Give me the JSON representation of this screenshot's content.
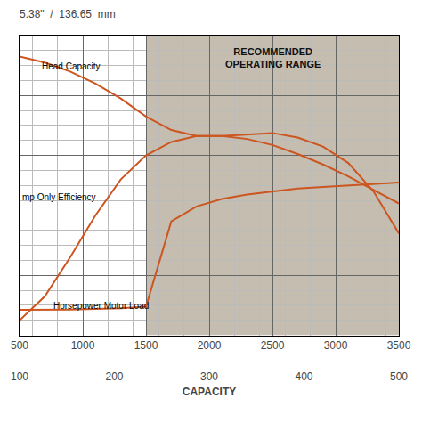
{
  "chart_data": {
    "type": "line",
    "title": "5.38\"  /  136.65  mm",
    "x_label": "CAPACITY",
    "x": [
      500,
      700,
      900,
      1100,
      1300,
      1500,
      1700,
      1900,
      2100,
      2300,
      2500,
      2700,
      2900,
      3100,
      3300,
      3500
    ],
    "series": [
      {
        "color": "#cc5520",
        "values": [
          0.93,
          0.91,
          0.88,
          0.84,
          0.79,
          0.73,
          0.685,
          0.665,
          0.665,
          0.67,
          0.675,
          0.66,
          0.63,
          0.575,
          0.48,
          0.34
        ]
      },
      {
        "color": "#cc5520",
        "values": [
          0.05,
          0.13,
          0.26,
          0.4,
          0.52,
          0.6,
          0.645,
          0.665,
          0.665,
          0.655,
          0.635,
          0.605,
          0.57,
          0.53,
          0.485,
          0.44
        ]
      },
      {
        "color": "#cc5520",
        "values": [
          0.085,
          0.085,
          0.086,
          0.088,
          0.09,
          0.095,
          0.38,
          0.43,
          0.455,
          0.47,
          0.48,
          0.49,
          0.495,
          0.5,
          0.505,
          0.51
        ]
      }
    ],
    "annotations": [
      {
        "text": "Head Capacity",
        "x": 660,
        "y": 0.875
      },
      {
        "text": "mp Only Efficiency",
        "x": 505,
        "y": 0.44
      },
      {
        "text": "Horsepower Motor Load",
        "x": 750,
        "y": 0.075
      }
    ],
    "regions": [
      {
        "from": 500,
        "to": 1500,
        "color": "#ffffff"
      },
      {
        "from": 1500,
        "to": 3500,
        "color": "#c5bdb0",
        "label": "RECOMMENDED\nOPERATING RANGE",
        "label_x": 2500,
        "label_y": 0.97
      }
    ],
    "xlim": [
      500,
      3500
    ],
    "xticks": [
      500,
      1000,
      1500,
      2000,
      2500,
      3000,
      3500
    ],
    "x2lim": [
      100,
      500
    ],
    "x2ticks": [
      100,
      200,
      300,
      400,
      500
    ],
    "ylim": [
      0,
      1
    ],
    "yticks": [
      0,
      0.2,
      0.4,
      0.6,
      0.8,
      1
    ],
    "tick_labels": "x",
    "grid": true
  }
}
